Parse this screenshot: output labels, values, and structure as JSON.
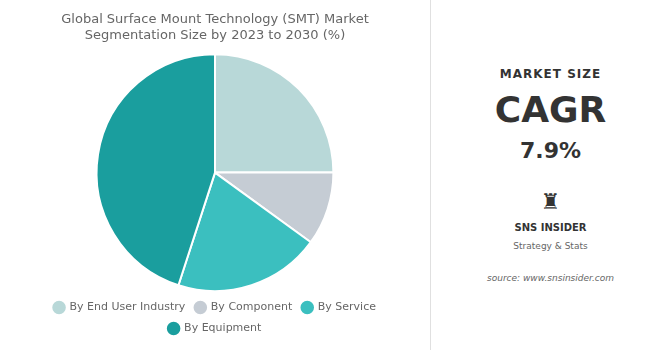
{
  "chart_data": {
    "type": "pie",
    "title": "Global Surface Mount Technology (SMT) Market\nSegmentation Size by 2023 to 2030 (%)",
    "categories": [
      "By End User Industry",
      "By Component",
      "By Service",
      "By Equipment"
    ],
    "values": [
      25,
      10,
      20,
      45
    ],
    "colors": [
      "#b8d8d8",
      "#c5ccd4",
      "#3bbfbf",
      "#1a9e9e"
    ],
    "legend": "bottom",
    "annotations": [
      "MARKET SIZE",
      "CAGR",
      "7.9%",
      "♜",
      "SNS INSIDER",
      "Strategy & Stats",
      "source: www.snsinsider.com"
    ]
  }
}
